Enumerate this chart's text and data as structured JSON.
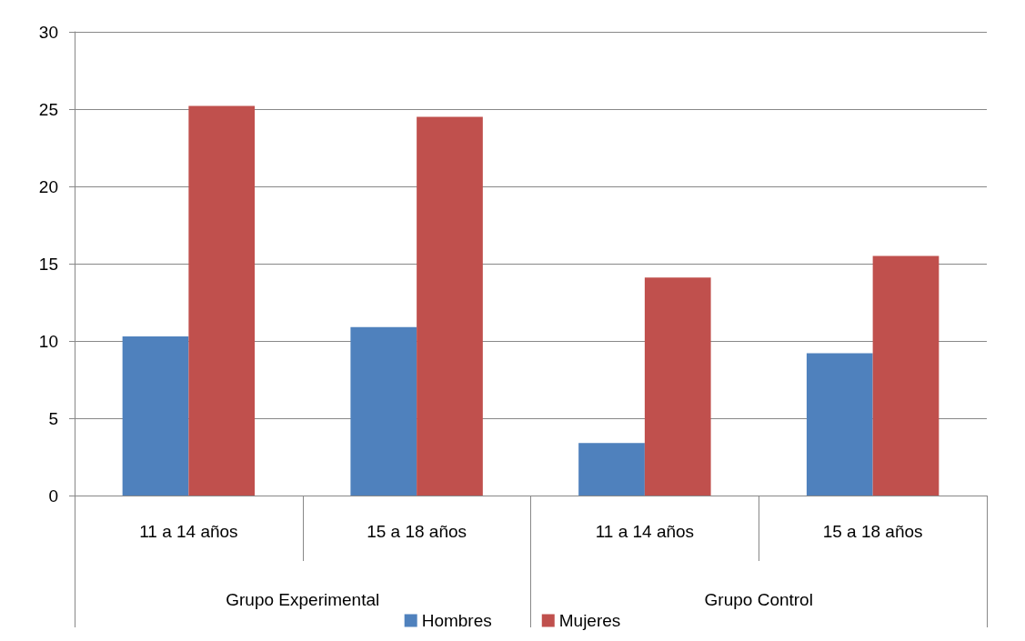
{
  "chart_data": {
    "type": "bar",
    "categories": [
      "11 a 14 años",
      "15 a 18 años",
      "11 a 14 años",
      "15 a 18 años"
    ],
    "annotations": [
      "Grupo Experimental",
      "Grupo Control"
    ],
    "series": [
      {
        "name": "Hombres",
        "color": "#4f81bd",
        "values": [
          10.3,
          10.9,
          3.4,
          9.2
        ]
      },
      {
        "name": "Mujeres",
        "color": "#c0504d",
        "values": [
          25.2,
          24.5,
          14.1,
          15.5
        ]
      }
    ],
    "ylim": [
      0,
      30
    ],
    "yticks": [
      0,
      5,
      10,
      15,
      20,
      25,
      30
    ],
    "grid": "y",
    "legend": "bottom"
  }
}
